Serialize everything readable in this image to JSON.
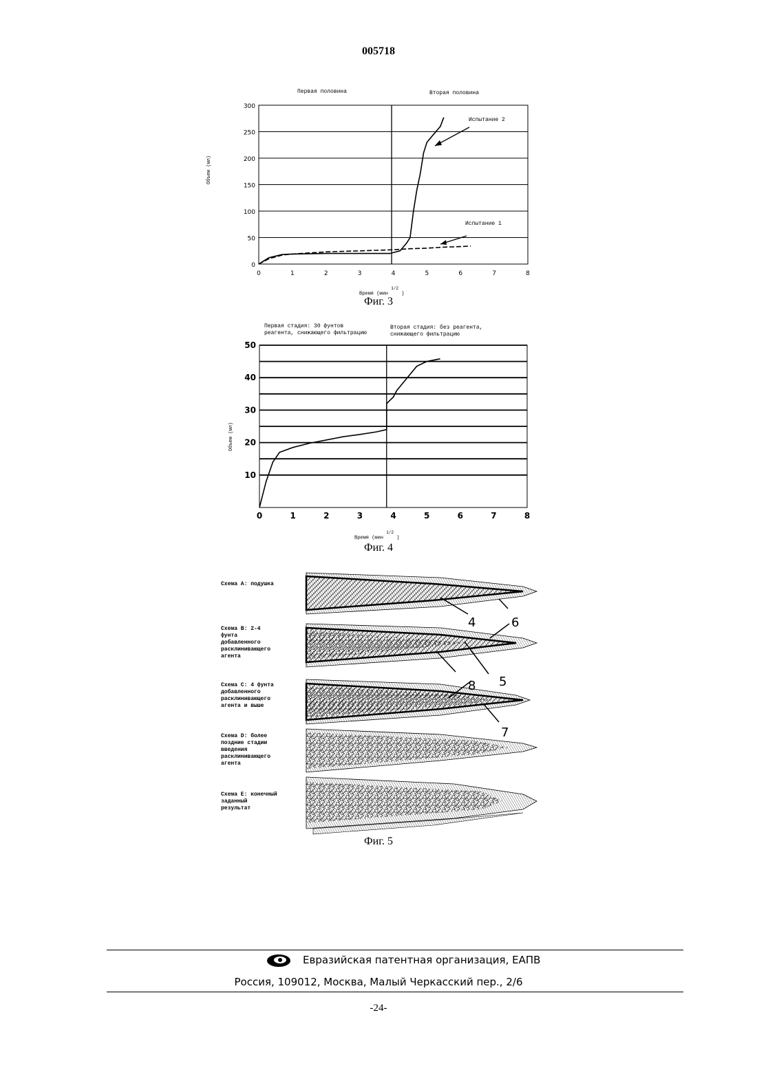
{
  "document": {
    "number": "005718",
    "page_number": "-24-"
  },
  "fig3": {
    "caption": "Фиг. 3",
    "header_left": "Первая половина",
    "header_right": "Вторая половина",
    "ylabel": "Объем (мл)",
    "xlabel": "Время (мин",
    "xlabel_exp": "1/2",
    "xlabel_close": ")",
    "annotation_1": "Испытание 1",
    "annotation_2": "Испытание 2"
  },
  "fig4": {
    "caption": "Фиг. 4",
    "header_left": "Первая стадия: 30 фунтов\nреагента, снижающего фильтрацию",
    "header_right": "Вторая стадия: без реагента,\nснижающего фильтрацию",
    "ylabel": "Объем (мл)",
    "xlabel": "Время (мин",
    "xlabel_exp": "1/2",
    "xlabel_close": ")"
  },
  "fig5": {
    "caption": "Фиг. 5",
    "schemes": [
      {
        "label": "Схема А: подушка"
      },
      {
        "label": "Схема В: 2-4\nфунта\nдобавленного\nрасклинивающего\nагента"
      },
      {
        "label": "Схема С: 4 фунта\nдобавленного\nрасклинивающего\nагента и выше"
      },
      {
        "label": "Схема D: более\nпоздние стадии\nвведения\nрасклинивающего\nагента"
      },
      {
        "label": "Схема Е: конечный\nзаданный\nрезультат"
      }
    ],
    "numbers": [
      "4",
      "6",
      "8",
      "5",
      "7"
    ]
  },
  "chart_data": [
    {
      "type": "line",
      "title": "",
      "xlabel": "Время (мин 1/2 )",
      "ylabel": "Объем (мл)",
      "xlim": [
        0,
        8
      ],
      "ylim": [
        0,
        300
      ],
      "x_ticks": [
        0,
        1,
        2,
        3,
        4,
        5,
        6,
        7,
        8
      ],
      "y_ticks": [
        0,
        50,
        100,
        150,
        200,
        250,
        300
      ],
      "grid": "horizontal",
      "series": [
        {
          "name": "Испытание 1",
          "style": "dashed",
          "x": [
            0,
            0.3,
            0.7,
            1.0,
            1.5,
            2.0,
            2.5,
            3.0,
            3.5,
            4.0,
            4.5,
            5.0,
            5.5,
            6.0,
            6.3
          ],
          "y": [
            0,
            10,
            17,
            19,
            21,
            23,
            24,
            25,
            26,
            27,
            29,
            30,
            32,
            33,
            34
          ]
        },
        {
          "name": "Испытание 2",
          "style": "solid",
          "x": [
            0,
            0.3,
            0.7,
            1.0,
            2.0,
            3.0,
            3.5,
            3.9,
            4.2,
            4.4,
            4.5,
            4.6,
            4.7,
            4.8,
            4.9,
            5.0,
            5.2,
            5.4,
            5.5
          ],
          "y": [
            0,
            12,
            18,
            19,
            20,
            20,
            20,
            20,
            25,
            40,
            50,
            100,
            140,
            170,
            210,
            230,
            245,
            260,
            277
          ]
        }
      ],
      "divider_x": 3.95
    },
    {
      "type": "line",
      "title": "",
      "xlabel": "Время (мин 1/2 )",
      "ylabel": "Объем (мл)",
      "xlim": [
        0,
        8
      ],
      "ylim": [
        0,
        50
      ],
      "x_ticks": [
        0,
        1,
        2,
        3,
        4,
        5,
        6,
        7,
        8
      ],
      "y_ticks": [
        10,
        20,
        30,
        40,
        50
      ],
      "grid": "horizontal",
      "series": [
        {
          "style": "solid",
          "x": [
            0,
            0.2,
            0.4,
            0.6,
            1.0,
            1.5,
            2.0,
            2.5,
            3.0,
            3.5,
            3.8,
            3.8,
            3.9,
            4.0,
            4.1,
            4.3,
            4.5,
            4.7,
            5.0,
            5.4
          ],
          "y": [
            0,
            8,
            14,
            17,
            18.5,
            19.8,
            20.8,
            21.8,
            22.5,
            23.3,
            24,
            32,
            33,
            34,
            36,
            38.5,
            41,
            43.5,
            45,
            45.8
          ]
        }
      ],
      "divider_x": 3.8
    }
  ]
}
